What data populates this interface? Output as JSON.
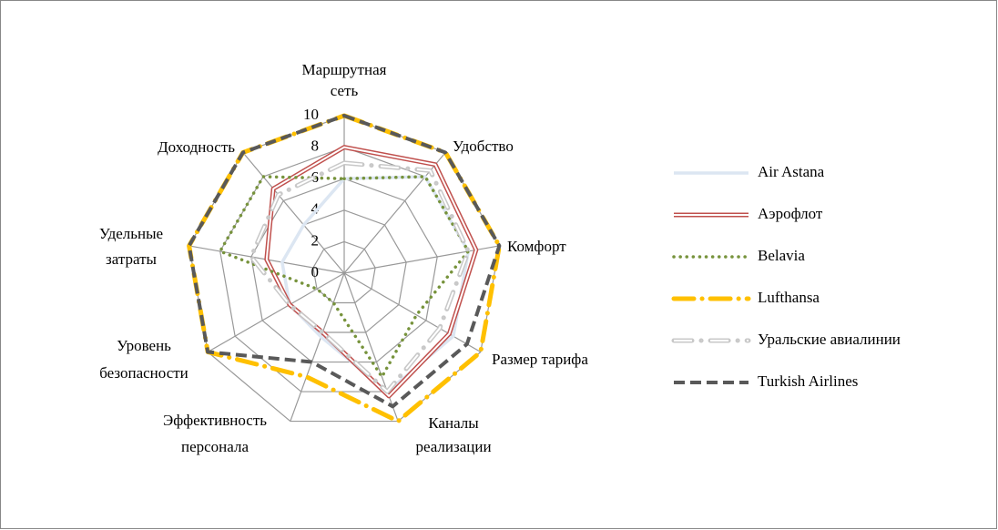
{
  "chart_data": {
    "type": "radar",
    "categories": [
      [
        "Маршрутная",
        "сеть"
      ],
      [
        "Удобство"
      ],
      [
        "Комфорт"
      ],
      [
        "Размер тарифа"
      ],
      [
        "Каналы",
        "реализации"
      ],
      [
        "Эффективность",
        "персонала"
      ],
      [
        "Уровень",
        "безопасности"
      ],
      [
        "Удельные",
        "затраты"
      ],
      [
        "Доходность"
      ]
    ],
    "ylim": [
      0,
      10
    ],
    "yticks": [
      0,
      2,
      4,
      6,
      8,
      10
    ],
    "grid": true,
    "legend": "right",
    "series": [
      {
        "name": "Air Astana",
        "color": "#dce6f2",
        "style": "solid",
        "values": [
          6,
          8,
          8,
          8,
          8,
          4.3,
          4,
          4,
          4
        ]
      },
      {
        "name": "Аэрофлот",
        "color": "#c0504d",
        "style": "double",
        "values": [
          8,
          9,
          8.5,
          7.7,
          8.3,
          4,
          4,
          5,
          7
        ]
      },
      {
        "name": "Belavia",
        "color": "#77933c",
        "style": "dotted",
        "values": [
          6,
          8,
          8,
          5.3,
          7,
          2,
          2,
          8,
          8
        ]
      },
      {
        "name": "Lufthansa",
        "color": "#ffc000",
        "style": "dashdot",
        "values": [
          10,
          10,
          10,
          10,
          10,
          7,
          10,
          10,
          10
        ]
      },
      {
        "name": "Уральские авиалинии",
        "color": "#c8c8c8",
        "style": "doubledash",
        "values": [
          7,
          8.5,
          8,
          7,
          8,
          4,
          4,
          6,
          6.5
        ]
      },
      {
        "name": "Turkish Airlines",
        "color": "#595959",
        "style": "dashed",
        "values": [
          10,
          10,
          10,
          9,
          9,
          6,
          10,
          10,
          10
        ]
      }
    ]
  }
}
